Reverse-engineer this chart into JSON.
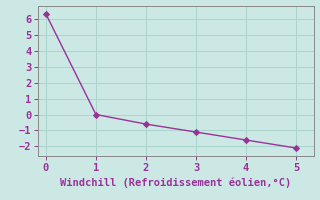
{
  "x": [
    0,
    1,
    2,
    3,
    4,
    5
  ],
  "y": [
    6.3,
    0.0,
    -0.6,
    -1.1,
    -1.6,
    -2.1
  ],
  "line_color": "#993399",
  "marker_color": "#993399",
  "marker_style": "D",
  "marker_size": 3,
  "line_width": 1.0,
  "xlabel": "Windchill (Refroidissement éolien,°C)",
  "xlabel_fontsize": 7.5,
  "xlabel_color": "#993399",
  "background_color": "#cce8e4",
  "grid_color": "#aad4cc",
  "tick_color": "#993399",
  "spine_color": "#888888",
  "xlim": [
    -0.15,
    5.35
  ],
  "ylim": [
    -2.6,
    6.8
  ],
  "yticks": [
    -2,
    -1,
    0,
    1,
    2,
    3,
    4,
    5,
    6
  ],
  "xticks": [
    0,
    1,
    2,
    3,
    4,
    5
  ],
  "tick_fontsize": 7.5
}
